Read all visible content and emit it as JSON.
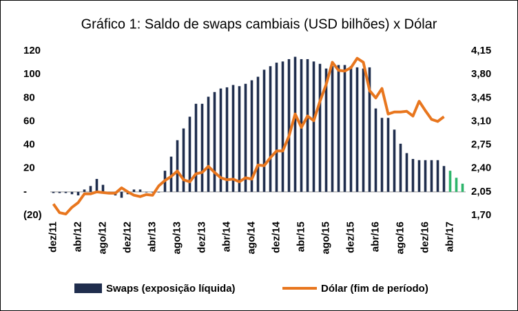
{
  "chart_data": {
    "type": "bar-line",
    "title": "Gráfico 1: Saldo de swaps cambiais (USD bilhões) x Dólar",
    "categories": [
      "dez/11",
      null,
      null,
      null,
      "abr/12",
      null,
      null,
      null,
      "ago/12",
      null,
      null,
      null,
      "dez/12",
      null,
      null,
      null,
      "abr/13",
      null,
      null,
      null,
      "ago/13",
      null,
      null,
      null,
      "dez/13",
      null,
      null,
      null,
      "abr/14",
      null,
      null,
      null,
      "ago/14",
      null,
      null,
      null,
      "dez/14",
      null,
      null,
      null,
      "abr/15",
      null,
      null,
      null,
      "ago/15",
      null,
      null,
      null,
      "dez/15",
      null,
      null,
      null,
      "abr/16",
      null,
      null,
      null,
      "ago/16",
      null,
      null,
      null,
      "dez/16",
      null,
      null,
      null,
      "abr/17",
      null,
      null
    ],
    "series": [
      {
        "name": "Swaps (exposição líquida)",
        "type": "bar",
        "color": "#1f2d4d",
        "colors": [
          "#1f2d4d",
          "#1f2d4d",
          "#1f2d4d",
          "#1f2d4d",
          "#1f2d4d",
          "#1f2d4d",
          "#1f2d4d",
          "#1f2d4d",
          "#1f2d4d",
          "#1f2d4d",
          "#1f2d4d",
          "#1f2d4d",
          "#1f2d4d",
          "#1f2d4d",
          "#1f2d4d",
          "#1f2d4d",
          "#1f2d4d",
          "#1f2d4d",
          "#1f2d4d",
          "#1f2d4d",
          "#1f2d4d",
          "#1f2d4d",
          "#1f2d4d",
          "#1f2d4d",
          "#1f2d4d",
          "#1f2d4d",
          "#1f2d4d",
          "#1f2d4d",
          "#1f2d4d",
          "#1f2d4d",
          "#1f2d4d",
          "#1f2d4d",
          "#1f2d4d",
          "#1f2d4d",
          "#1f2d4d",
          "#1f2d4d",
          "#1f2d4d",
          "#1f2d4d",
          "#1f2d4d",
          "#1f2d4d",
          "#1f2d4d",
          "#1f2d4d",
          "#1f2d4d",
          "#1f2d4d",
          "#1f2d4d",
          "#1f2d4d",
          "#1f2d4d",
          "#1f2d4d",
          "#1f2d4d",
          "#1f2d4d",
          "#1f2d4d",
          "#1f2d4d",
          "#1f2d4d",
          "#1f2d4d",
          "#1f2d4d",
          "#1f2d4d",
          "#1f2d4d",
          "#1f2d4d",
          "#1f2d4d",
          "#1f2d4d",
          "#1f2d4d",
          "#1f2d4d",
          "#1f2d4d",
          "#1f2d4d",
          "#2db56b",
          "#2db56b",
          "#2db56b"
        ],
        "values": [
          -1,
          -1,
          -1,
          -2,
          -3,
          2,
          5,
          11,
          6,
          -2,
          -3,
          -5,
          -2,
          2,
          2,
          0,
          0,
          0,
          18,
          30,
          44,
          54,
          64,
          75,
          75,
          81,
          85,
          88,
          89,
          91,
          90,
          92,
          95,
          98,
          104,
          107,
          110,
          111,
          113,
          115,
          113,
          113,
          111,
          109,
          105,
          107,
          108,
          108,
          107,
          106,
          105,
          106,
          71,
          63,
          63,
          53,
          41,
          33,
          28,
          27,
          27,
          27,
          27,
          22,
          18,
          12,
          7
        ]
      },
      {
        "name": "Dólar (fim de período)",
        "type": "line",
        "axis": "y2",
        "color": "#e8761e",
        "values": [
          1.87,
          1.74,
          1.72,
          1.82,
          1.89,
          2.02,
          2.02,
          2.05,
          2.04,
          2.03,
          2.03,
          2.11,
          2.05,
          2.0,
          1.98,
          2.01,
          2.0,
          2.14,
          2.22,
          2.28,
          2.36,
          2.23,
          2.2,
          2.32,
          2.34,
          2.43,
          2.34,
          2.26,
          2.23,
          2.24,
          2.2,
          2.26,
          2.24,
          2.45,
          2.44,
          2.56,
          2.66,
          2.66,
          2.88,
          3.21,
          3.01,
          3.18,
          3.11,
          3.4,
          3.65,
          3.98,
          3.86,
          3.85,
          3.9,
          4.04,
          3.98,
          3.56,
          3.45,
          3.59,
          3.21,
          3.24,
          3.24,
          3.25,
          3.18,
          3.4,
          3.26,
          3.13,
          3.1,
          3.17,
          null,
          null,
          null
        ]
      }
    ],
    "ylim": [
      -20,
      120
    ],
    "yticks": [
      120,
      100,
      80,
      60,
      40,
      20,
      {
        "value": 0,
        "label": "-"
      },
      {
        "value": -20,
        "label": "(20)"
      }
    ],
    "y2lim": [
      1.7,
      4.15
    ],
    "y2ticks": [
      {
        "value": 4.15,
        "label": "4,15"
      },
      {
        "value": 3.8,
        "label": "3,80"
      },
      {
        "value": 3.45,
        "label": "3,45"
      },
      {
        "value": 3.1,
        "label": "3,10"
      },
      {
        "value": 2.75,
        "label": "2,75"
      },
      {
        "value": 2.4,
        "label": "2,40"
      },
      {
        "value": 2.05,
        "label": "2,05"
      },
      {
        "value": 1.7,
        "label": "1,70"
      }
    ],
    "legend": "bottom"
  }
}
